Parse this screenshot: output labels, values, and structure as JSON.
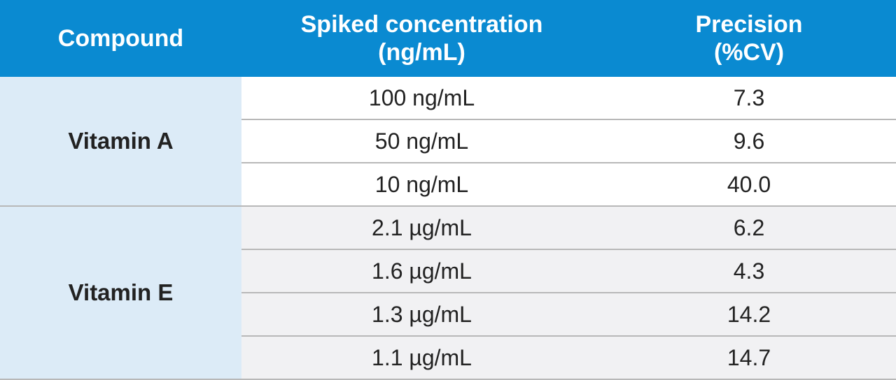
{
  "table": {
    "headers": {
      "compound": "Compound",
      "spiked_line1": "Spiked concentration",
      "spiked_line2": "(ng/mL)",
      "precision_line1": "Precision",
      "precision_line2": "(%CV)"
    },
    "groups": [
      {
        "compound": "Vitamin A",
        "rows": [
          {
            "concentration": "100 ng/mL",
            "precision": "7.3"
          },
          {
            "concentration": "50 ng/mL",
            "precision": "9.6"
          },
          {
            "concentration": "10 ng/mL",
            "precision": "40.0"
          }
        ]
      },
      {
        "compound": "Vitamin E",
        "rows": [
          {
            "concentration": "2.1 µg/mL",
            "precision": "6.2"
          },
          {
            "concentration": "1.6 µg/mL",
            "precision": "4.3"
          },
          {
            "concentration": "1.3 µg/mL",
            "precision": "14.2"
          },
          {
            "concentration": "1.1 µg/mL",
            "precision": "14.7"
          }
        ]
      }
    ]
  },
  "colors": {
    "header_bg": "#0a8ad1",
    "header_text": "#ffffff",
    "compound_bg": "#dcebf7",
    "row_bg_group_a": "#ffffff",
    "row_bg_group_e": "#f1f1f3",
    "divider": "#b8b8b8"
  }
}
